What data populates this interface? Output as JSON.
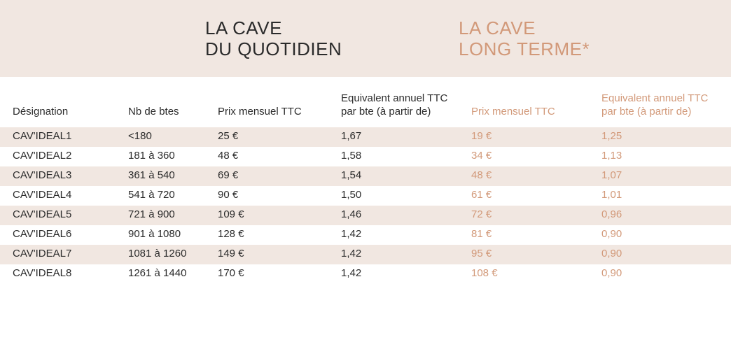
{
  "colors": {
    "band_bg": "#f1e7e1",
    "text_dark": "#2b2b2b",
    "accent": "#d29979"
  },
  "header": {
    "left_title": "LA CAVE\nDU QUOTIDIEN",
    "right_title": "LA CAVE\nLONG TERME*"
  },
  "columns": [
    {
      "label": "Désignation",
      "accent": false
    },
    {
      "label": "Nb de btes",
      "accent": false
    },
    {
      "label": "Prix mensuel TTC",
      "accent": false
    },
    {
      "label": "Equivalent annuel TTC\npar bte (à partir de)",
      "accent": false
    },
    {
      "label": "Prix mensuel TTC",
      "accent": true
    },
    {
      "label": "Equivalent annuel TTC\npar bte (à partir de)",
      "accent": true
    }
  ],
  "rows": [
    {
      "cells": [
        "CAV'IDEAL1",
        "<180",
        "25 €",
        "1,67",
        "19 €",
        "1,25"
      ]
    },
    {
      "cells": [
        "CAV'IDEAL2",
        "181 à 360",
        "48 €",
        "1,58",
        "34 €",
        "1,13"
      ]
    },
    {
      "cells": [
        "CAV'IDEAL3",
        "361 à 540",
        "69 €",
        "1,54",
        "48 €",
        "1,07"
      ]
    },
    {
      "cells": [
        "CAV'IDEAL4",
        "541 à 720",
        "90 €",
        "1,50",
        "61 €",
        "1,01"
      ]
    },
    {
      "cells": [
        "CAV'IDEAL5",
        "721 à 900",
        "109 €",
        "1,46",
        "72 €",
        "0,96"
      ]
    },
    {
      "cells": [
        "CAV'IDEAL6",
        "901 à 1080",
        "128 €",
        "1,42",
        "81 €",
        "0,90"
      ]
    },
    {
      "cells": [
        "CAV'IDEAL7",
        "1081 à 1260",
        "149 €",
        "1,42",
        "95 €",
        "0,90"
      ]
    },
    {
      "cells": [
        "CAV'IDEAL8",
        "1261 à 1440",
        "170 €",
        "1,42",
        "108 €",
        "0,90"
      ]
    }
  ]
}
